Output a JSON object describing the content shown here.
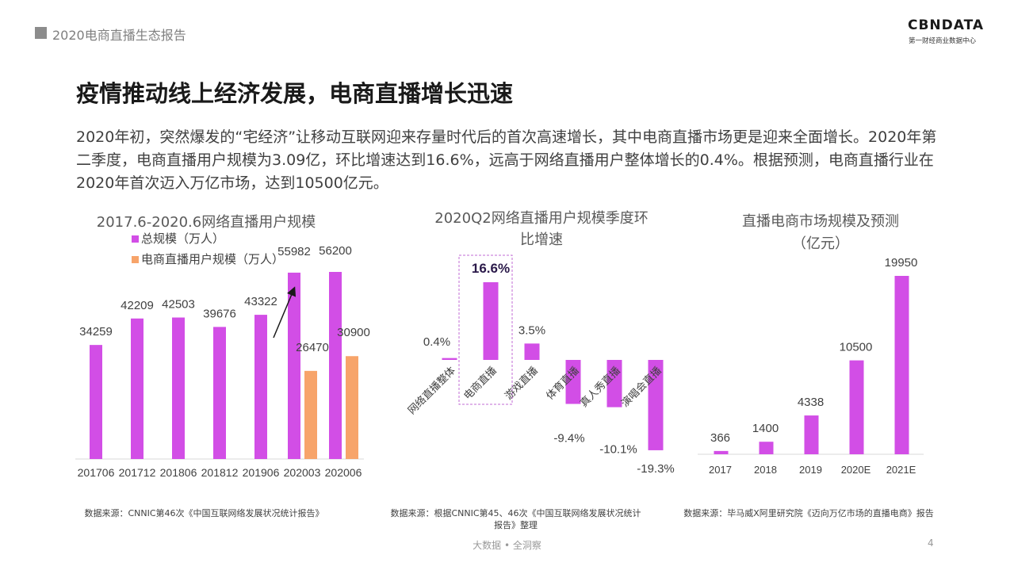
{
  "header": {
    "report_title": "2020电商直播生态报告"
  },
  "logo": {
    "brand": "CBNDATA",
    "tagline": "第一财经商业数据中心"
  },
  "main_title": "疫情推动线上经济发展，电商直播增长迅速",
  "paragraph": "2020年初，突然爆发的“宅经济”让移动互联网迎来存量时代后的首次高速增长，其中电商直播市场更是迎来全面增长。2020年第二季度，电商直播用户规模为3.09亿，环比增速达到16.6%，远高于网络直播用户整体增长的0.4%。根据预测，电商直播行业在2020年首次迈入万亿市场，达到10500亿元。",
  "chart_data": [
    {
      "type": "bar",
      "title": "2017.6-2020.6网络直播用户规模",
      "categories": [
        "201706",
        "201712",
        "201806",
        "201812",
        "201906",
        "202003",
        "202006"
      ],
      "series": [
        {
          "name": "总规模（万人）",
          "values": [
            34259,
            42209,
            42503,
            39676,
            43322,
            55982,
            56200
          ],
          "color": "#d24ee6"
        },
        {
          "name": "电商直播用户规模（万人）",
          "values": [
            null,
            null,
            null,
            null,
            null,
            26470,
            30900
          ],
          "color": "#f7a46a"
        }
      ],
      "legend": "top-left",
      "grid": false
    },
    {
      "type": "bar",
      "title_lines": [
        "2020Q2网络直播用户规模季度环",
        "比增速"
      ],
      "categories": [
        "网络直播整体",
        "电商直播",
        "游戏直播",
        "体育直播",
        "真人秀直播",
        "演唱会直播"
      ],
      "values": [
        0.4,
        16.6,
        3.5,
        -9.4,
        -10.1,
        -19.3
      ],
      "labels": [
        "0.4%",
        "16.6%",
        "3.5%",
        "-9.4%",
        "-10.1%",
        "-19.3%"
      ],
      "highlight": "电商直播",
      "color": "#d24ee6",
      "grid": false
    },
    {
      "type": "bar",
      "title_lines": [
        "直播电商市场规模及预测",
        "（亿元）"
      ],
      "categories": [
        "2017",
        "2018",
        "2019",
        "2020E",
        "2021E"
      ],
      "values": [
        366,
        1400,
        4338,
        10500,
        19950
      ],
      "color": "#d24ee6",
      "grid": false
    }
  ],
  "sources": [
    "数据来源：CNNIC第46次《中国互联网络发展状况统计报告》",
    "数据来源：根据CNNIC第45、46次《中国互联网络发展状况统计报告》整理",
    "数据来源：毕马威X阿里研究院《迈向万亿市场的直播电商》报告"
  ],
  "footer": "大数据 • 全洞察",
  "page_number": "4"
}
